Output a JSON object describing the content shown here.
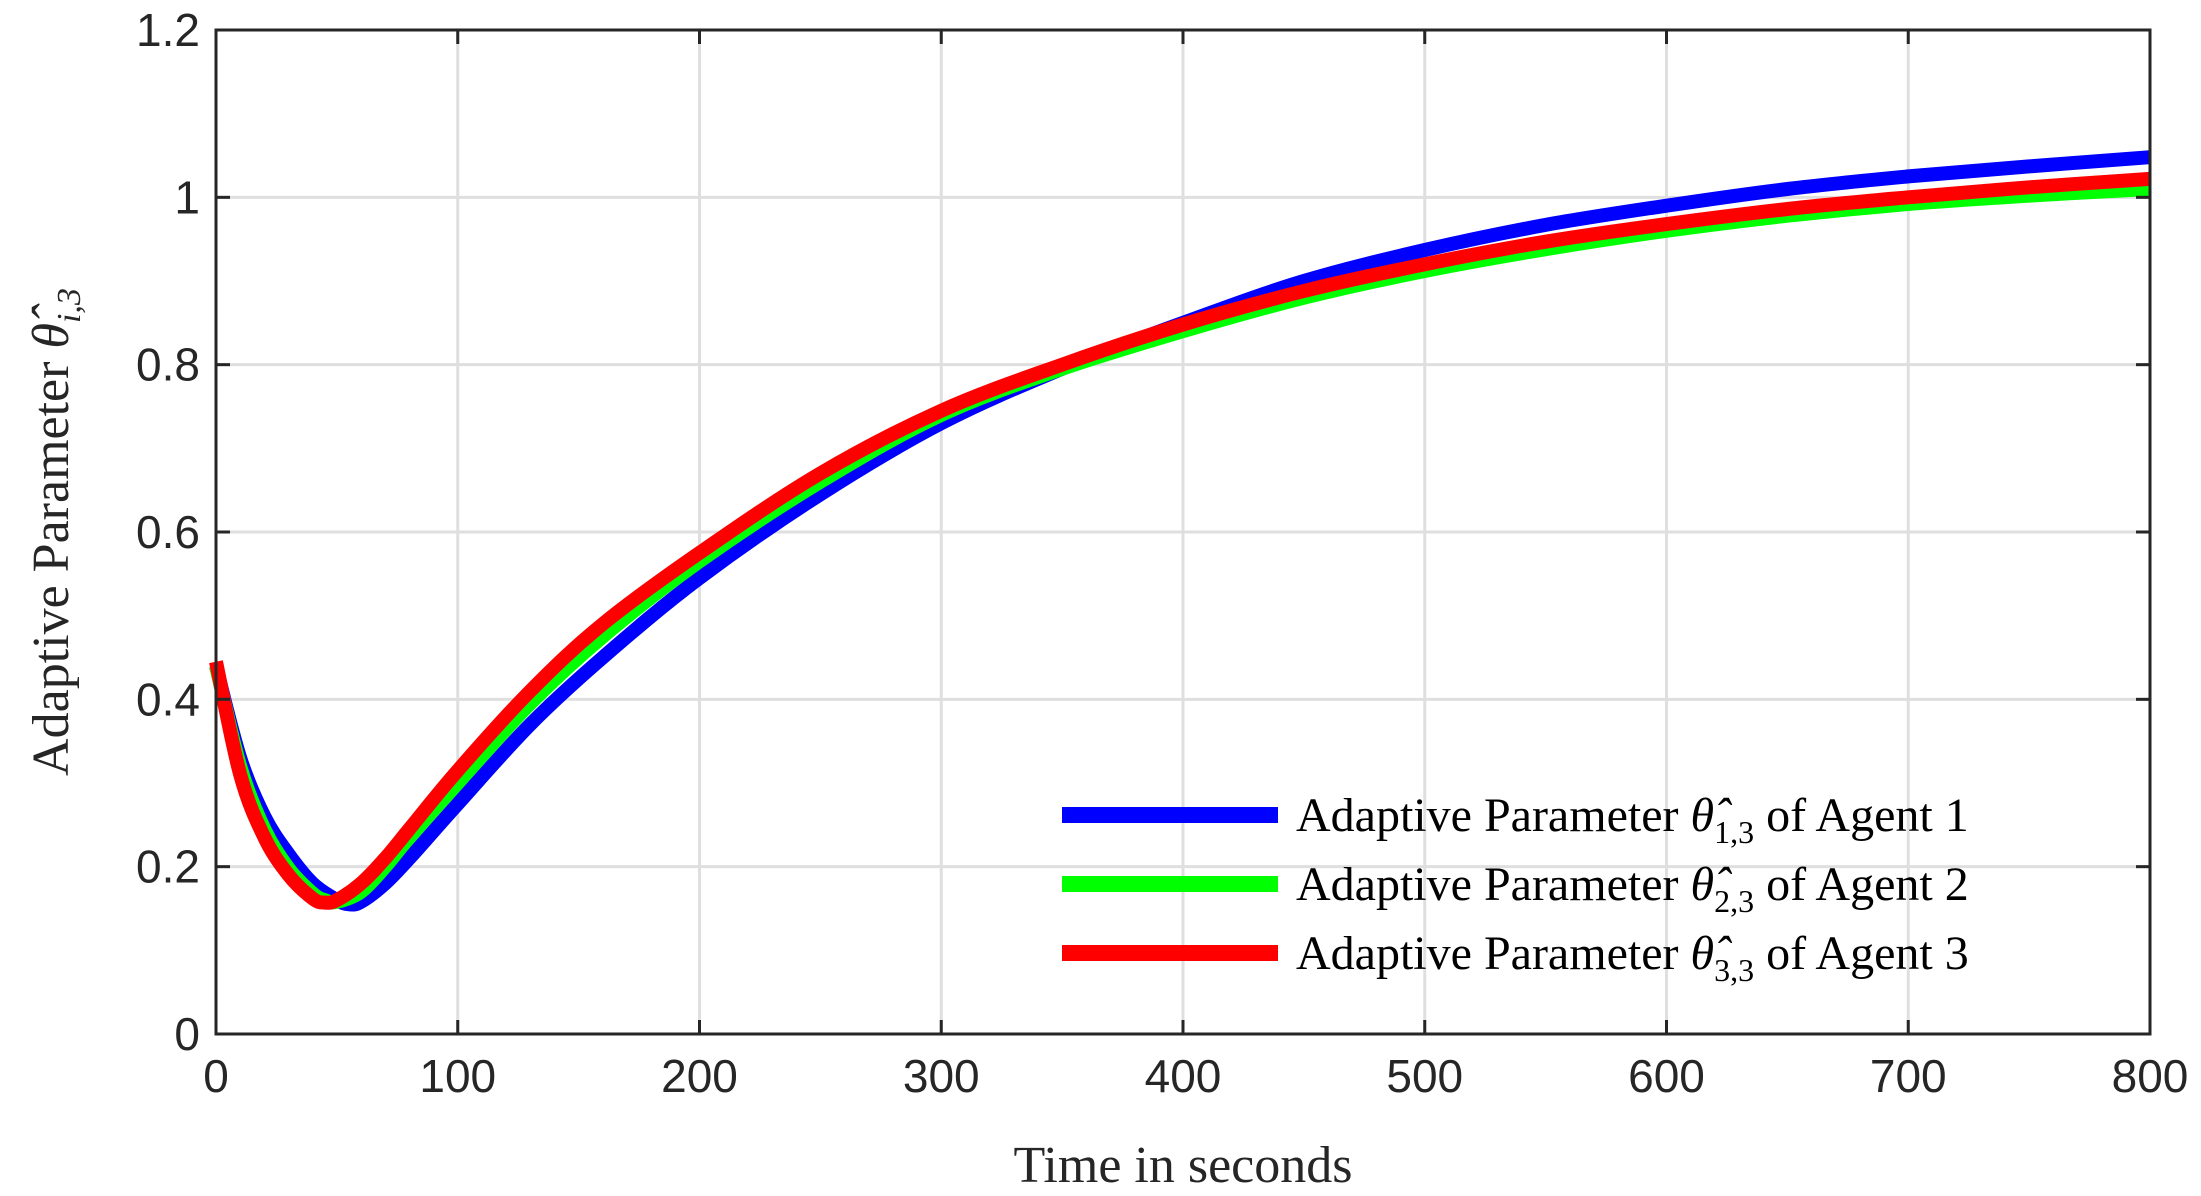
{
  "chart_data": {
    "type": "line",
    "title": "",
    "xlabel": "Time in seconds",
    "ylabel": {
      "prefix": "Adaptive Parameter ",
      "symbol": "θ̂",
      "subscript": "i,3"
    },
    "xlim": [
      0,
      800
    ],
    "ylim": [
      0,
      1.2
    ],
    "xticks": [
      0,
      100,
      200,
      300,
      400,
      500,
      600,
      700,
      800
    ],
    "xtick_labels": [
      "0",
      "100",
      "200",
      "300",
      "400",
      "500",
      "600",
      "700",
      "800"
    ],
    "yticks": [
      0,
      0.2,
      0.4,
      0.6,
      0.8,
      1.0,
      1.2
    ],
    "ytick_labels": [
      "0",
      "0.2",
      "0.4",
      "0.6",
      "0.8",
      "1",
      "1.2"
    ],
    "grid": true,
    "legend_position": "bottom-right",
    "series": [
      {
        "name": "Adaptive Parameter θ̂1,3 of Agent 1",
        "legend_prefix": "Adaptive Parameter ",
        "legend_symbol": "θ̂",
        "legend_subscript": "1,3",
        "legend_suffix": " of Agent 1",
        "color": "#0000ff",
        "x": [
          0,
          10,
          20,
          30,
          40,
          50,
          55,
          60,
          70,
          80,
          100,
          130,
          160,
          200,
          250,
          300,
          350,
          400,
          450,
          500,
          550,
          600,
          650,
          700,
          750,
          800
        ],
        "y": [
          0.44,
          0.33,
          0.26,
          0.215,
          0.18,
          0.16,
          0.155,
          0.158,
          0.18,
          0.21,
          0.275,
          0.37,
          0.45,
          0.545,
          0.645,
          0.73,
          0.795,
          0.85,
          0.9,
          0.937,
          0.967,
          0.99,
          1.01,
          1.025,
          1.037,
          1.048
        ]
      },
      {
        "name": "Adaptive Parameter θ̂2,3 of Agent 2",
        "legend_prefix": "Adaptive Parameter ",
        "legend_symbol": "θ̂",
        "legend_subscript": "2,3",
        "legend_suffix": " of Agent 2",
        "color": "#00ff00",
        "x": [
          0,
          10,
          20,
          30,
          40,
          45,
          50,
          60,
          70,
          80,
          100,
          130,
          160,
          200,
          250,
          300,
          350,
          400,
          450,
          500,
          550,
          600,
          650,
          700,
          750,
          800
        ],
        "y": [
          0.44,
          0.32,
          0.245,
          0.198,
          0.168,
          0.16,
          0.158,
          0.17,
          0.2,
          0.235,
          0.3,
          0.395,
          0.475,
          0.565,
          0.66,
          0.74,
          0.795,
          0.84,
          0.88,
          0.912,
          0.938,
          0.96,
          0.978,
          0.992,
          1.002,
          1.01
        ]
      },
      {
        "name": "Adaptive Parameter θ̂3,3 of Agent 3",
        "legend_prefix": "Adaptive Parameter ",
        "legend_symbol": "θ̂",
        "legend_subscript": "3,3",
        "legend_suffix": " of Agent 3",
        "color": "#ff0000",
        "x": [
          0,
          10,
          20,
          30,
          40,
          45,
          50,
          60,
          70,
          80,
          100,
          130,
          160,
          200,
          250,
          300,
          350,
          400,
          450,
          500,
          550,
          600,
          650,
          700,
          750,
          800
        ],
        "y": [
          0.445,
          0.31,
          0.235,
          0.19,
          0.162,
          0.157,
          0.16,
          0.18,
          0.21,
          0.245,
          0.315,
          0.41,
          0.49,
          0.575,
          0.67,
          0.745,
          0.8,
          0.848,
          0.888,
          0.92,
          0.947,
          0.968,
          0.986,
          1.0,
          1.012,
          1.022
        ]
      }
    ]
  }
}
